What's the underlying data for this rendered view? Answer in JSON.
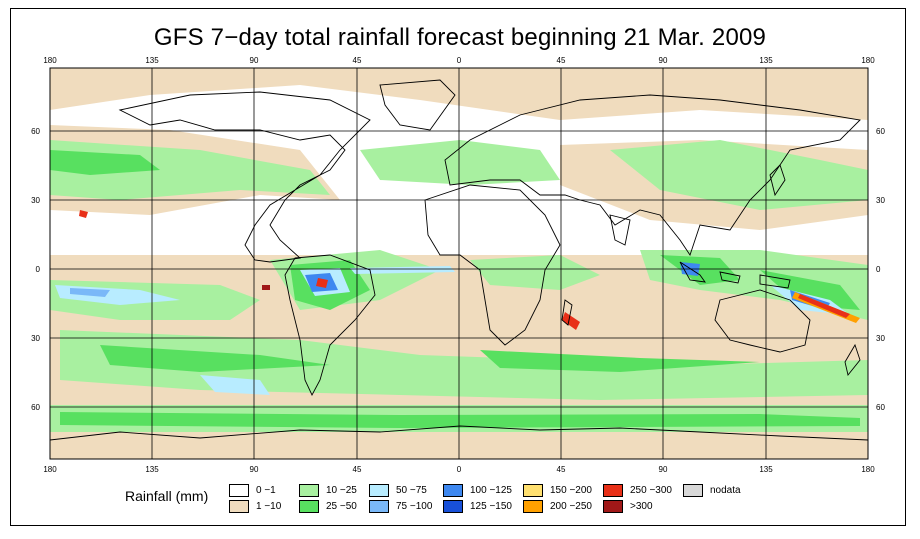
{
  "title": "GFS 7−day total rainfall forecast beginning 21 Mar. 2009",
  "axes": {
    "top_lon_labels": [
      "180",
      "135",
      "90",
      "45",
      "0",
      "45",
      "90",
      "135",
      "180"
    ],
    "bottom_lon_labels": [
      "180",
      "135",
      "90",
      "45",
      "0",
      "45",
      "90",
      "135",
      "180"
    ],
    "left_lat_labels": [
      "60",
      "30",
      "0",
      "30",
      "60"
    ],
    "right_lat_labels": [
      "60",
      "30",
      "0",
      "30",
      "60"
    ]
  },
  "legend": {
    "label": "Rainfall (mm)",
    "items": [
      {
        "text": "0 −1",
        "color": "#ffffff"
      },
      {
        "text": "1 −10",
        "color": "#f0dcbe"
      },
      {
        "text": "10 −25",
        "color": "#a8f0a0"
      },
      {
        "text": "25 −50",
        "color": "#58e060"
      },
      {
        "text": "50 −75",
        "color": "#b8ecff"
      },
      {
        "text": "75 −100",
        "color": "#7ab8f8"
      },
      {
        "text": "100 −125",
        "color": "#3e88f0"
      },
      {
        "text": "125 −150",
        "color": "#1850d8"
      },
      {
        "text": "150 −200",
        "color": "#ffe070"
      },
      {
        "text": "200 −250",
        "color": "#ffa000"
      },
      {
        "text": "250 −300",
        "color": "#e83018"
      },
      {
        "text": ">300",
        "color": "#a01818"
      },
      {
        "text": "nodata",
        "color": "#d8d8d8"
      }
    ]
  },
  "colors": {
    "frame": "#000000",
    "grid": "#000000",
    "coast": "#000000"
  }
}
